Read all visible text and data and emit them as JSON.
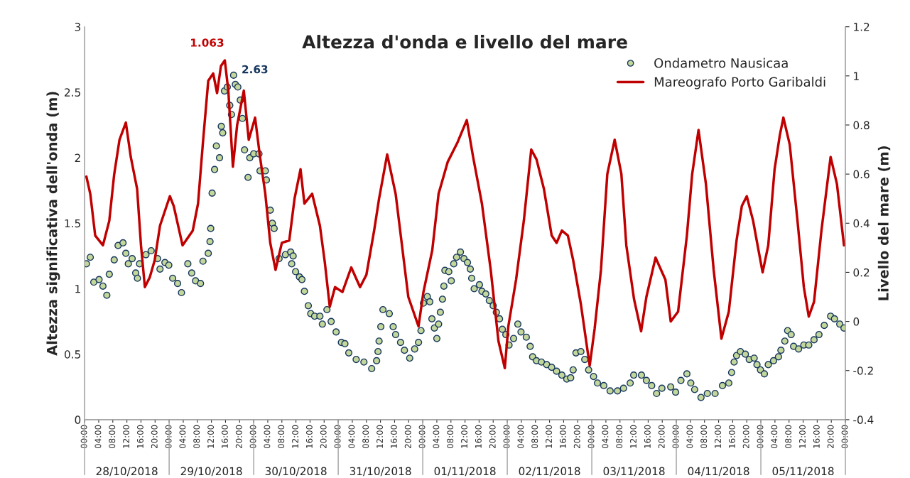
{
  "chart_data": {
    "type": "scatter",
    "title": "Altezza d'onda e livello del mare",
    "ylabel": "Altezza significativa dell'onda (m)",
    "y2label": "Livello del mare (m)",
    "xlim": [
      "2018-10-28T00:00",
      "2018-11-06T00:00"
    ],
    "xticks": [
      {
        "value": "2018-10-28T00:00",
        "label": "00:00"
      },
      {
        "value": "2018-10-28T04:00",
        "label": "04:00"
      },
      {
        "value": "2018-10-28T08:00",
        "label": "08:00"
      },
      {
        "value": "2018-10-28T12:00",
        "label": "12:00"
      },
      {
        "value": "2018-10-28T16:00",
        "label": "16:00"
      },
      {
        "value": "2018-10-28T20:00",
        "label": "20:00"
      },
      {
        "value": "2018-10-29T00:00",
        "label": "00:00"
      },
      {
        "value": "2018-10-29T04:00",
        "label": "04:00"
      },
      {
        "value": "2018-10-29T08:00",
        "label": "08:00"
      },
      {
        "value": "2018-10-29T12:00",
        "label": "12:00"
      },
      {
        "value": "2018-10-29T16:00",
        "label": "16:00"
      },
      {
        "value": "2018-10-29T20:00",
        "label": "20:00"
      },
      {
        "value": "2018-10-30T00:00",
        "label": "00:00"
      },
      {
        "value": "2018-10-30T04:00",
        "label": "04:00"
      },
      {
        "value": "2018-10-30T08:00",
        "label": "08:00"
      },
      {
        "value": "2018-10-30T12:00",
        "label": "12:00"
      },
      {
        "value": "2018-10-30T16:00",
        "label": "16:00"
      },
      {
        "value": "2018-10-30T20:00",
        "label": "20:00"
      },
      {
        "value": "2018-10-31T00:00",
        "label": "00:00"
      },
      {
        "value": "2018-10-31T04:00",
        "label": "04:00"
      },
      {
        "value": "2018-10-31T08:00",
        "label": "08:00"
      },
      {
        "value": "2018-10-31T12:00",
        "label": "12:00"
      },
      {
        "value": "2018-10-31T16:00",
        "label": "16:00"
      },
      {
        "value": "2018-10-31T20:00",
        "label": "20:00"
      },
      {
        "value": "2018-11-01T00:00",
        "label": "00:00"
      },
      {
        "value": "2018-11-01T04:00",
        "label": "04:00"
      },
      {
        "value": "2018-11-01T08:00",
        "label": "08:00"
      },
      {
        "value": "2018-11-01T12:00",
        "label": "12:00"
      },
      {
        "value": "2018-11-01T16:00",
        "label": "16:00"
      },
      {
        "value": "2018-11-01T20:00",
        "label": "20:00"
      },
      {
        "value": "2018-11-02T00:00",
        "label": "00:00"
      },
      {
        "value": "2018-11-02T04:00",
        "label": "04:00"
      },
      {
        "value": "2018-11-02T08:00",
        "label": "08:00"
      },
      {
        "value": "2018-11-02T12:00",
        "label": "12:00"
      },
      {
        "value": "2018-11-02T16:00",
        "label": "16:00"
      },
      {
        "value": "2018-11-02T20:00",
        "label": "20:00"
      },
      {
        "value": "2018-11-03T00:00",
        "label": "00:00"
      },
      {
        "value": "2018-11-03T04:00",
        "label": "04:00"
      },
      {
        "value": "2018-11-03T08:00",
        "label": "08:00"
      },
      {
        "value": "2018-11-03T12:00",
        "label": "12:00"
      },
      {
        "value": "2018-11-03T16:00",
        "label": "16:00"
      },
      {
        "value": "2018-11-03T20:00",
        "label": "20:00"
      },
      {
        "value": "2018-11-04T00:00",
        "label": "00:00"
      },
      {
        "value": "2018-11-04T04:00",
        "label": "04:00"
      },
      {
        "value": "2018-11-04T08:00",
        "label": "08:00"
      },
      {
        "value": "2018-11-04T12:00",
        "label": "12:00"
      },
      {
        "value": "2018-11-04T16:00",
        "label": "16:00"
      },
      {
        "value": "2018-11-04T20:00",
        "label": "20:00"
      },
      {
        "value": "2018-11-05T00:00",
        "label": "00:00"
      },
      {
        "value": "2018-11-05T04:00",
        "label": "04:00"
      },
      {
        "value": "2018-11-05T08:00",
        "label": "08:00"
      },
      {
        "value": "2018-11-05T12:00",
        "label": "12:00"
      },
      {
        "value": "2018-11-05T16:00",
        "label": "16:00"
      },
      {
        "value": "2018-11-05T20:00",
        "label": "20:00"
      },
      {
        "value": "2018-11-06T00:00",
        "label": "00:00"
      }
    ],
    "x2lim": [
      "2018-10-28T00:00",
      "2018-11-06T00:00"
    ],
    "x2ticks": [
      {
        "value": "2018-10-28T12:00",
        "label": "28/10/2018"
      },
      {
        "value": "2018-10-29T12:00",
        "label": "29/10/2018"
      },
      {
        "value": "2018-10-30T12:00",
        "label": "30/10/2018"
      },
      {
        "value": "2018-10-31T12:00",
        "label": "31/10/2018"
      },
      {
        "value": "2018-11-01T12:00",
        "label": "01/11/2018"
      },
      {
        "value": "2018-11-02T12:00",
        "label": "02/11/2018"
      },
      {
        "value": "2018-11-03T12:00",
        "label": "03/11/2018"
      },
      {
        "value": "2018-11-04T12:00",
        "label": "04/11/2018"
      },
      {
        "value": "2018-11-05T12:00",
        "label": "05/11/2018"
      }
    ],
    "ylim": [
      0,
      3
    ],
    "yticks": [
      0,
      0.5,
      1,
      1.5,
      2,
      2.5,
      3
    ],
    "y2lim": [
      -0.4,
      1.2
    ],
    "y2ticks": [
      -0.4,
      -0.2,
      0,
      0.2,
      0.4,
      0.6,
      0.8,
      1,
      1.2
    ],
    "grid": false,
    "legend": "top right",
    "series": [
      {
        "name": "Ondametro Nausicaa",
        "marker": "circle",
        "color": "#c4d79b",
        "x": [
          "2018-10-28T00:30",
          "2018-10-28T01:36",
          "2018-10-28T02:36",
          "2018-10-28T04:06",
          "2018-10-28T05:12",
          "2018-10-28T06:18",
          "2018-10-28T07:00",
          "2018-10-28T08:24",
          "2018-10-28T09:30",
          "2018-10-28T10:54",
          "2018-10-28T11:42",
          "2018-10-28T12:24",
          "2018-10-28T13:30",
          "2018-10-28T14:30",
          "2018-10-28T15:00",
          "2018-10-28T15:36",
          "2018-10-28T17:24",
          "2018-10-28T18:54",
          "2018-10-28T20:42",
          "2018-10-28T21:24",
          "2018-10-28T22:48",
          "2018-10-28T23:54",
          "2018-10-29T01:00",
          "2018-10-29T02:24",
          "2018-10-29T03:30",
          "2018-10-29T05:18",
          "2018-10-29T06:24",
          "2018-10-29T07:30",
          "2018-10-29T08:54",
          "2018-10-29T09:36",
          "2018-10-29T11:06",
          "2018-10-29T11:36",
          "2018-10-29T11:48",
          "2018-10-29T12:12",
          "2018-10-29T12:54",
          "2018-10-29T13:24",
          "2018-10-29T14:18",
          "2018-10-29T14:48",
          "2018-10-29T15:12",
          "2018-10-29T15:42",
          "2018-10-29T16:30",
          "2018-10-29T17:12",
          "2018-10-29T17:42",
          "2018-10-29T18:18",
          "2018-10-29T18:48",
          "2018-10-29T19:30",
          "2018-10-29T20:12",
          "2018-10-29T20:48",
          "2018-10-29T21:24",
          "2018-10-29T22:24",
          "2018-10-29T22:54",
          "2018-10-30T00:00",
          "2018-10-30T01:30",
          "2018-10-30T01:48",
          "2018-10-30T03:18",
          "2018-10-30T03:36",
          "2018-10-30T04:42",
          "2018-10-30T05:18",
          "2018-10-30T05:48",
          "2018-10-30T07:12",
          "2018-10-30T09:00",
          "2018-10-30T10:30",
          "2018-10-30T10:48",
          "2018-10-30T11:12",
          "2018-10-30T11:54",
          "2018-10-30T13:00",
          "2018-10-30T13:42",
          "2018-10-30T14:24",
          "2018-10-30T15:30",
          "2018-10-30T16:12",
          "2018-10-30T17:18",
          "2018-10-30T18:48",
          "2018-10-30T19:30",
          "2018-10-30T20:48",
          "2018-10-30T22:00",
          "2018-10-30T23:24",
          "2018-10-31T00:54",
          "2018-10-31T01:54",
          "2018-10-31T03:00",
          "2018-10-31T05:06",
          "2018-10-31T07:18",
          "2018-10-31T09:30",
          "2018-10-31T10:54",
          "2018-10-31T11:18",
          "2018-10-31T11:36",
          "2018-10-31T12:06",
          "2018-10-31T12:42",
          "2018-10-31T14:30",
          "2018-10-31T15:36",
          "2018-10-31T16:18",
          "2018-10-31T17:42",
          "2018-10-31T18:48",
          "2018-10-31T20:18",
          "2018-10-31T21:42",
          "2018-10-31T22:48",
          "2018-10-31T23:30",
          "2018-11-01T00:12",
          "2018-11-01T01:18",
          "2018-11-01T02:00",
          "2018-11-01T02:36",
          "2018-11-01T03:18",
          "2018-11-01T04:00",
          "2018-11-01T04:30",
          "2018-11-01T05:00",
          "2018-11-01T05:36",
          "2018-11-01T06:00",
          "2018-11-01T06:18",
          "2018-11-01T07:24",
          "2018-11-01T08:06",
          "2018-11-01T08:48",
          "2018-11-01T09:36",
          "2018-11-01T10:42",
          "2018-11-01T11:42",
          "2018-11-01T12:42",
          "2018-11-01T13:30",
          "2018-11-01T13:54",
          "2018-11-01T14:36",
          "2018-11-01T16:06",
          "2018-11-01T16:48",
          "2018-11-01T17:54",
          "2018-11-01T18:54",
          "2018-11-01T20:00",
          "2018-11-01T20:54",
          "2018-11-01T21:48",
          "2018-11-01T22:36",
          "2018-11-01T23:36",
          "2018-11-02T00:30",
          "2018-11-02T01:48",
          "2018-11-02T03:00",
          "2018-11-02T03:54",
          "2018-11-02T05:24",
          "2018-11-02T06:30",
          "2018-11-02T07:12",
          "2018-11-02T08:18",
          "2018-11-02T09:42",
          "2018-11-02T11:12",
          "2018-11-02T12:36",
          "2018-11-02T14:00",
          "2018-11-02T15:30",
          "2018-11-02T16:54",
          "2018-11-02T18:00",
          "2018-11-02T18:42",
          "2018-11-02T19:30",
          "2018-11-02T20:54",
          "2018-11-02T22:00",
          "2018-11-02T23:06",
          "2018-11-03T00:30",
          "2018-11-03T01:36",
          "2018-11-03T03:24",
          "2018-11-03T05:12",
          "2018-11-03T07:18",
          "2018-11-03T09:00",
          "2018-11-03T10:54",
          "2018-11-03T11:54",
          "2018-11-03T14:06",
          "2018-11-03T15:30",
          "2018-11-03T17:00",
          "2018-11-03T18:24",
          "2018-11-03T19:54",
          "2018-11-03T22:24",
          "2018-11-03T23:48",
          "2018-11-04T01:18",
          "2018-11-04T03:00",
          "2018-11-04T04:06",
          "2018-11-04T05:12",
          "2018-11-04T07:00",
          "2018-11-04T08:48",
          "2018-11-04T11:00",
          "2018-11-04T13:06",
          "2018-11-04T14:54",
          "2018-11-04T15:42",
          "2018-11-04T16:24",
          "2018-11-04T17:06",
          "2018-11-04T18:12",
          "2018-11-04T19:36",
          "2018-11-04T20:42",
          "2018-11-04T22:06",
          "2018-11-04T22:54",
          "2018-11-04T23:54",
          "2018-11-05T01:00",
          "2018-11-05T02:06",
          "2018-11-05T03:36",
          "2018-11-05T05:00",
          "2018-11-05T05:42",
          "2018-11-05T06:48",
          "2018-11-05T07:36",
          "2018-11-05T08:36",
          "2018-11-05T09:18",
          "2018-11-05T10:42",
          "2018-11-05T12:12",
          "2018-11-05T13:36",
          "2018-11-05T15:06",
          "2018-11-05T16:30",
          "2018-11-05T18:00",
          "2018-11-05T19:48",
          "2018-11-05T20:54",
          "2018-11-05T22:24",
          "2018-11-05T23:36"
        ],
        "values": [
          1.19,
          1.24,
          1.05,
          1.07,
          1.02,
          0.95,
          1.11,
          1.22,
          1.33,
          1.35,
          1.27,
          1.19,
          1.23,
          1.12,
          1.08,
          1.19,
          1.26,
          1.29,
          1.23,
          1.15,
          1.2,
          1.18,
          1.08,
          1.04,
          0.97,
          1.19,
          1.12,
          1.06,
          1.04,
          1.21,
          1.27,
          1.36,
          1.46,
          1.73,
          1.91,
          2.09,
          2.0,
          2.24,
          2.19,
          2.51,
          2.54,
          2.4,
          2.33,
          2.63,
          2.56,
          2.54,
          2.44,
          2.3,
          2.06,
          1.85,
          2.0,
          2.03,
          2.03,
          1.9,
          1.9,
          1.83,
          1.6,
          1.5,
          1.46,
          1.23,
          1.26,
          1.28,
          1.19,
          1.25,
          1.13,
          1.09,
          1.07,
          0.98,
          0.87,
          0.81,
          0.79,
          0.79,
          0.73,
          0.84,
          0.75,
          0.67,
          0.59,
          0.58,
          0.51,
          0.46,
          0.44,
          0.39,
          0.45,
          0.52,
          0.6,
          0.71,
          0.84,
          0.81,
          0.71,
          0.65,
          0.59,
          0.53,
          0.47,
          0.54,
          0.59,
          0.68,
          0.89,
          0.94,
          0.9,
          0.77,
          0.7,
          0.62,
          0.73,
          0.82,
          0.92,
          1.02,
          1.14,
          1.13,
          1.06,
          1.19,
          1.24,
          1.28,
          1.23,
          1.2,
          1.15,
          1.08,
          1.0,
          1.03,
          0.98,
          0.96,
          0.91,
          0.87,
          0.82,
          0.77,
          0.69,
          0.65,
          0.57,
          0.62,
          0.73,
          0.67,
          0.63,
          0.56,
          0.48,
          0.45,
          0.44,
          0.42,
          0.4,
          0.37,
          0.34,
          0.31,
          0.32,
          0.38,
          0.51,
          0.52,
          0.46,
          0.38,
          0.33,
          0.28,
          0.26,
          0.22,
          0.22,
          0.24,
          0.28,
          0.34,
          0.34,
          0.3,
          0.26,
          0.2,
          0.24,
          0.25,
          0.21,
          0.3,
          0.35,
          0.28,
          0.23,
          0.17,
          0.2,
          0.2,
          0.26,
          0.28,
          0.36,
          0.44,
          0.49,
          0.52,
          0.5,
          0.46,
          0.47,
          0.42,
          0.38,
          0.35,
          0.42,
          0.45,
          0.48,
          0.53,
          0.6,
          0.68,
          0.65,
          0.56,
          0.54,
          0.57,
          0.57,
          0.61,
          0.65,
          0.72,
          0.79,
          0.77,
          0.73,
          0.7
        ]
      },
      {
        "name": "Mareografo Porto Garibaldi",
        "type": "line",
        "axis": "y2",
        "marker": "none",
        "line_style": "solid",
        "color": "#c00000",
        "x": [
          "2018-10-28T00:30",
          "2018-10-28T01:36",
          "2018-10-28T03:00",
          "2018-10-28T05:12",
          "2018-10-28T07:00",
          "2018-10-28T08:24",
          "2018-10-28T09:54",
          "2018-10-28T11:42",
          "2018-10-28T13:06",
          "2018-10-28T14:54",
          "2018-10-28T16:00",
          "2018-10-28T17:06",
          "2018-10-28T18:30",
          "2018-10-28T19:54",
          "2018-10-28T21:24",
          "2018-10-29T00:12",
          "2018-10-29T01:18",
          "2018-10-29T03:48",
          "2018-10-29T06:42",
          "2018-10-29T08:12",
          "2018-10-29T09:36",
          "2018-10-29T11:06",
          "2018-10-29T12:30",
          "2018-10-29T13:36",
          "2018-10-29T14:42",
          "2018-10-29T15:48",
          "2018-10-29T16:48",
          "2018-10-29T18:06",
          "2018-10-29T19:18",
          "2018-10-29T21:12",
          "2018-10-29T22:36",
          "2018-10-30T00:24",
          "2018-10-30T01:48",
          "2018-10-30T03:18",
          "2018-10-30T04:42",
          "2018-10-30T06:12",
          "2018-10-30T08:00",
          "2018-10-30T10:06",
          "2018-10-30T11:36",
          "2018-10-30T13:18",
          "2018-10-30T14:24",
          "2018-10-30T16:36",
          "2018-10-30T18:48",
          "2018-10-30T20:12",
          "2018-10-30T21:36",
          "2018-10-30T23:06",
          "2018-10-31T01:12",
          "2018-10-31T03:42",
          "2018-10-31T06:12",
          "2018-10-31T08:00",
          "2018-10-31T10:12",
          "2018-10-31T11:36",
          "2018-10-31T13:54",
          "2018-10-31T16:18",
          "2018-10-31T18:06",
          "2018-10-31T19:54",
          "2018-10-31T22:48",
          "2018-11-01T00:12",
          "2018-11-01T02:42",
          "2018-11-01T04:30",
          "2018-11-01T07:06",
          "2018-11-01T09:54",
          "2018-11-01T12:30",
          "2018-11-01T14:18",
          "2018-11-01T16:48",
          "2018-11-01T19:18",
          "2018-11-01T21:30",
          "2018-11-01T23:18",
          "2018-11-02T00:18",
          "2018-11-02T02:30",
          "2018-11-02T04:42",
          "2018-11-02T06:48",
          "2018-11-02T08:18",
          "2018-11-02T10:24",
          "2018-11-02T12:36",
          "2018-11-02T14:00",
          "2018-11-02T15:30",
          "2018-11-02T17:12",
          "2018-11-02T18:42",
          "2018-11-02T20:54",
          "2018-11-02T23:24",
          "2018-11-03T00:48",
          "2018-11-03T02:36",
          "2018-11-03T04:24",
          "2018-11-03T06:30",
          "2018-11-03T08:24",
          "2018-11-03T09:48",
          "2018-11-03T12:00",
          "2018-11-03T14:00",
          "2018-11-03T15:30",
          "2018-11-03T18:06",
          "2018-11-03T20:54",
          "2018-11-03T22:24",
          "2018-11-04T00:30",
          "2018-11-04T03:00",
          "2018-11-04T04:30",
          "2018-11-04T06:18",
          "2018-11-04T08:24",
          "2018-11-04T10:36",
          "2018-11-04T12:48",
          "2018-11-04T14:54",
          "2018-11-04T17:06",
          "2018-11-04T18:36",
          "2018-11-04T20:00",
          "2018-11-04T21:48",
          "2018-11-04T23:12",
          "2018-11-05T00:30",
          "2018-11-05T02:06",
          "2018-11-05T03:54",
          "2018-11-05T05:24",
          "2018-11-05T06:24",
          "2018-11-05T08:12",
          "2018-11-05T10:24",
          "2018-11-05T12:12",
          "2018-11-05T13:36",
          "2018-11-05T15:06",
          "2018-11-05T17:12",
          "2018-11-05T19:48",
          "2018-11-05T21:36",
          "2018-11-05T23:36"
        ],
        "values": [
          0.59,
          0.52,
          0.35,
          0.31,
          0.41,
          0.6,
          0.74,
          0.81,
          0.67,
          0.54,
          0.31,
          0.14,
          0.18,
          0.25,
          0.39,
          0.51,
          0.47,
          0.31,
          0.37,
          0.48,
          0.73,
          0.98,
          1.01,
          0.93,
          1.04,
          1.063,
          0.94,
          0.63,
          0.8,
          0.94,
          0.74,
          0.83,
          0.67,
          0.52,
          0.32,
          0.21,
          0.32,
          0.33,
          0.5,
          0.62,
          0.48,
          0.52,
          0.39,
          0.24,
          0.06,
          0.14,
          0.12,
          0.22,
          0.14,
          0.19,
          0.37,
          0.5,
          0.68,
          0.52,
          0.31,
          0.1,
          -0.02,
          0.12,
          0.29,
          0.52,
          0.65,
          0.73,
          0.82,
          0.67,
          0.48,
          0.21,
          -0.08,
          -0.19,
          -0.02,
          0.17,
          0.41,
          0.7,
          0.66,
          0.54,
          0.35,
          0.32,
          0.37,
          0.35,
          0.25,
          0.07,
          -0.18,
          -0.03,
          0.21,
          0.6,
          0.74,
          0.6,
          0.31,
          0.09,
          -0.04,
          0.1,
          0.26,
          0.17,
          0.0,
          0.04,
          0.35,
          0.6,
          0.78,
          0.56,
          0.21,
          -0.07,
          0.04,
          0.33,
          0.47,
          0.51,
          0.41,
          0.3,
          0.2,
          0.31,
          0.62,
          0.76,
          0.83,
          0.72,
          0.41,
          0.14,
          0.02,
          0.08,
          0.37,
          0.67,
          0.56,
          0.31
        ]
      }
    ],
    "annotations": [
      {
        "text": "2.63",
        "x": "2018-10-29T18:18",
        "y": 2.63
      },
      "1.063"
    ]
  }
}
